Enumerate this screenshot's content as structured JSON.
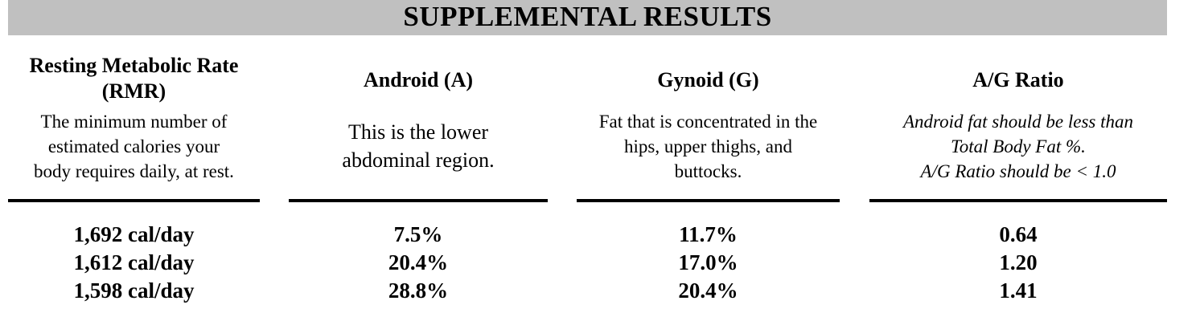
{
  "banner": {
    "title": "SUPPLEMENTAL RESULTS"
  },
  "columns": [
    {
      "heading_lines": [
        "Resting Metabolic Rate",
        "(RMR)"
      ],
      "description_lines": [
        "The minimum number of",
        "estimated calories your",
        "body requires daily, at rest."
      ],
      "values": [
        "1,692 cal/day",
        "1,612 cal/day",
        "1,598 cal/day"
      ]
    },
    {
      "heading_lines": [
        "Android (A)"
      ],
      "description_lines": [
        "This is the lower",
        "abdominal region."
      ],
      "values": [
        "7.5%",
        "20.4%",
        "28.8%"
      ]
    },
    {
      "heading_lines": [
        "Gynoid (G)"
      ],
      "description_lines": [
        "Fat that is concentrated in the",
        "hips, upper thighs, and",
        "buttocks."
      ],
      "values": [
        "11.7%",
        "17.0%",
        "20.4%"
      ]
    },
    {
      "heading_lines": [
        "A/G Ratio"
      ],
      "description_lines": [
        "Android fat should be less than",
        "Total Body Fat %.",
        "A/G Ratio should be < 1.0"
      ],
      "values": [
        "0.64",
        "1.20",
        "1.41"
      ]
    }
  ]
}
